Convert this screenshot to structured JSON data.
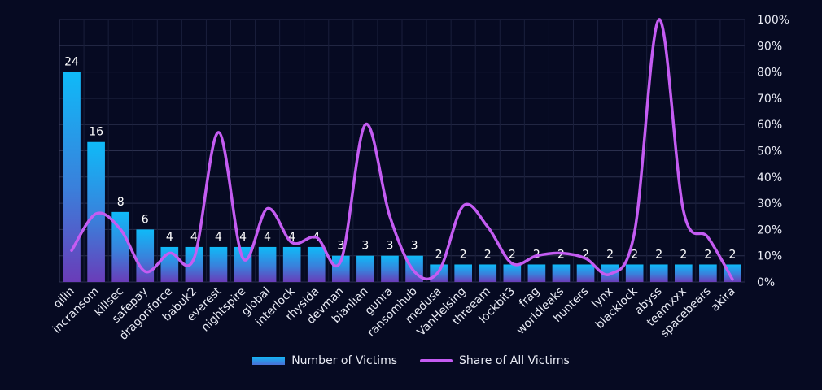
{
  "chart_data": {
    "type": "bar",
    "categories": [
      "qilin",
      "incransom",
      "killsec",
      "safepay",
      "dragonforce",
      "babuk2",
      "everest",
      "nightspire",
      "global",
      "interlock",
      "rhysida",
      "devman",
      "bianlian",
      "gunra",
      "ransomhub",
      "medusa",
      "VanHelsing",
      "threeam",
      "lockbit3",
      "frag",
      "worldleaks",
      "hunters",
      "lynx",
      "blacklock",
      "abyss",
      "teamxxx",
      "spacebears",
      "akira"
    ],
    "series": [
      {
        "name": "Number of Victims",
        "type": "bar",
        "values": [
          24,
          16,
          8,
          6,
          4,
          4,
          4,
          4,
          4,
          4,
          4,
          3,
          3,
          3,
          3,
          2,
          2,
          2,
          2,
          2,
          2,
          2,
          2,
          2,
          2,
          2,
          2,
          2
        ],
        "color": "#12b8f6"
      },
      {
        "name": "Share of All Victims",
        "type": "line",
        "axis": "right",
        "values": [
          12,
          26,
          20,
          4,
          11,
          9,
          57,
          9,
          28,
          15,
          17,
          8,
          60,
          25,
          4,
          4,
          29,
          21,
          7,
          10,
          11,
          9,
          3,
          19,
          100,
          27,
          17,
          1
        ],
        "color": "#c45cf2"
      }
    ],
    "y_left_lim": [
      0,
      30
    ],
    "y_right_lim": [
      0,
      100
    ],
    "y_right_ticks": [
      "0%",
      "10%",
      "20%",
      "30%",
      "40%",
      "50%",
      "60%",
      "70%",
      "80%",
      "90%",
      "100%"
    ],
    "data_labels": [
      "24",
      "16",
      "8",
      "6",
      "4",
      "4",
      "4",
      "4",
      "4",
      "4",
      "4",
      "3",
      "3",
      "3",
      "3",
      "2",
      "2",
      "2",
      "2",
      "2",
      "2",
      "2",
      "2",
      "2",
      "2",
      "2",
      "2",
      "2"
    ],
    "grid": true,
    "legend_position": "bottom"
  }
}
